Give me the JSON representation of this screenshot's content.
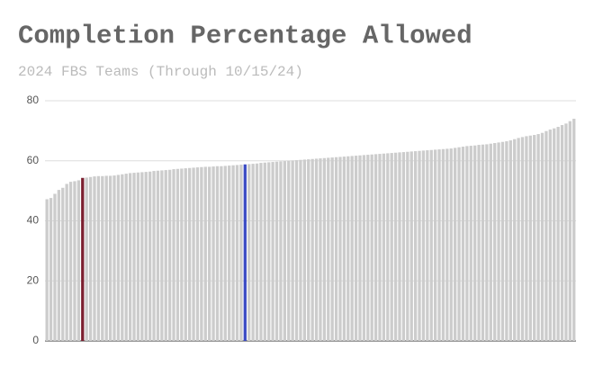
{
  "chart_data": {
    "type": "bar",
    "title": "Completion Percentage Allowed",
    "subtitle": "2024 FBS Teams (Through 10/15/24)",
    "categories": [
      null,
      null,
      null,
      null,
      null,
      null,
      null,
      null,
      null,
      null,
      null,
      null,
      null,
      null,
      null,
      null,
      null,
      null,
      null,
      null,
      null,
      null,
      null,
      null,
      null,
      null,
      null,
      null,
      null,
      null,
      null,
      null,
      null,
      null,
      null,
      null,
      null,
      null,
      null,
      null,
      null,
      null,
      null,
      null,
      null,
      null,
      null,
      null,
      null,
      null,
      null,
      null,
      null,
      null,
      null,
      null,
      null,
      null,
      null,
      null,
      null,
      null,
      null,
      null,
      null,
      null,
      null,
      null,
      null,
      null,
      null,
      null,
      null,
      null,
      null,
      null,
      null,
      null,
      null,
      null,
      null,
      null,
      null,
      null,
      null,
      null,
      null,
      null,
      null,
      null,
      null,
      null,
      null,
      null,
      null,
      null,
      null,
      null,
      null,
      null,
      null,
      null,
      null,
      null,
      null,
      null,
      null,
      null,
      null,
      null,
      null,
      null,
      null,
      null,
      null,
      null,
      null,
      null,
      null,
      null,
      null,
      null,
      null,
      null,
      null,
      null,
      null,
      null,
      null,
      null,
      null,
      null,
      null,
      null
    ],
    "values": [
      47.2,
      47.6,
      49.0,
      50.3,
      51.0,
      52.3,
      53.0,
      53.2,
      53.5,
      54.3,
      54.4,
      54.6,
      54.8,
      54.9,
      54.9,
      55.0,
      55.0,
      55.1,
      55.3,
      55.5,
      55.7,
      55.9,
      56.0,
      56.1,
      56.2,
      56.3,
      56.4,
      56.6,
      56.7,
      56.8,
      56.9,
      57.0,
      57.2,
      57.3,
      57.4,
      57.5,
      57.6,
      57.7,
      57.8,
      57.9,
      58.0,
      58.0,
      58.1,
      58.2,
      58.2,
      58.3,
      58.4,
      58.5,
      58.6,
      58.7,
      58.8,
      58.9,
      59.0,
      59.1,
      59.3,
      59.4,
      59.5,
      59.6,
      59.7,
      59.8,
      59.9,
      60.0,
      60.1,
      60.2,
      60.3,
      60.4,
      60.5,
      60.6,
      60.7,
      60.8,
      60.9,
      61.0,
      61.1,
      61.2,
      61.3,
      61.4,
      61.5,
      61.6,
      61.7,
      61.8,
      61.9,
      62.0,
      62.1,
      62.2,
      62.3,
      62.4,
      62.5,
      62.6,
      62.7,
      62.8,
      62.9,
      63.0,
      63.1,
      63.2,
      63.3,
      63.4,
      63.5,
      63.6,
      63.7,
      63.8,
      63.9,
      64.0,
      64.1,
      64.3,
      64.5,
      64.7,
      64.9,
      65.0,
      65.1,
      65.3,
      65.4,
      65.5,
      65.7,
      65.9,
      66.1,
      66.3,
      66.5,
      66.8,
      67.2,
      67.6,
      67.9,
      68.2,
      68.4,
      68.6,
      68.9,
      69.3,
      69.9,
      70.4,
      70.8,
      71.3,
      71.9,
      72.4,
      73.2,
      74.0
    ],
    "colors": [
      "#cccccc",
      "#cccccc",
      "#cccccc",
      "#cccccc",
      "#cccccc",
      "#cccccc",
      "#cccccc",
      "#cccccc",
      "#cccccc",
      "#7b1f2f",
      "#cccccc",
      "#cccccc",
      "#cccccc",
      "#cccccc",
      "#cccccc",
      "#cccccc",
      "#cccccc",
      "#cccccc",
      "#cccccc",
      "#cccccc",
      "#cccccc",
      "#cccccc",
      "#cccccc",
      "#cccccc",
      "#cccccc",
      "#cccccc",
      "#cccccc",
      "#cccccc",
      "#cccccc",
      "#cccccc",
      "#cccccc",
      "#cccccc",
      "#cccccc",
      "#cccccc",
      "#cccccc",
      "#cccccc",
      "#cccccc",
      "#cccccc",
      "#cccccc",
      "#cccccc",
      "#cccccc",
      "#cccccc",
      "#cccccc",
      "#cccccc",
      "#cccccc",
      "#cccccc",
      "#cccccc",
      "#cccccc",
      "#cccccc",
      "#cccccc",
      "#3c4cc4",
      "#cccccc",
      "#cccccc",
      "#cccccc",
      "#cccccc",
      "#cccccc",
      "#cccccc",
      "#cccccc",
      "#cccccc",
      "#cccccc",
      "#cccccc",
      "#cccccc",
      "#cccccc",
      "#cccccc",
      "#cccccc",
      "#cccccc",
      "#cccccc",
      "#cccccc",
      "#cccccc",
      "#cccccc",
      "#cccccc",
      "#cccccc",
      "#cccccc",
      "#cccccc",
      "#cccccc",
      "#cccccc",
      "#cccccc",
      "#cccccc",
      "#cccccc",
      "#cccccc",
      "#cccccc",
      "#cccccc",
      "#cccccc",
      "#cccccc",
      "#cccccc",
      "#cccccc",
      "#cccccc",
      "#cccccc",
      "#cccccc",
      "#cccccc",
      "#cccccc",
      "#cccccc",
      "#cccccc",
      "#cccccc",
      "#cccccc",
      "#cccccc",
      "#cccccc",
      "#cccccc",
      "#cccccc",
      "#cccccc",
      "#cccccc",
      "#cccccc",
      "#cccccc",
      "#cccccc",
      "#cccccc",
      "#cccccc",
      "#cccccc",
      "#cccccc",
      "#cccccc",
      "#cccccc",
      "#cccccc",
      "#cccccc",
      "#cccccc",
      "#cccccc",
      "#cccccc",
      "#cccccc",
      "#cccccc",
      "#cccccc",
      "#cccccc",
      "#cccccc",
      "#cccccc",
      "#cccccc",
      "#cccccc",
      "#cccccc",
      "#cccccc",
      "#cccccc",
      "#cccccc",
      "#cccccc",
      "#cccccc",
      "#cccccc",
      "#cccccc",
      "#cccccc",
      "#cccccc",
      "#cccccc"
    ],
    "ylim": [
      0,
      80
    ],
    "yticks": [
      0,
      20,
      40,
      60,
      80
    ],
    "grid": true
  }
}
